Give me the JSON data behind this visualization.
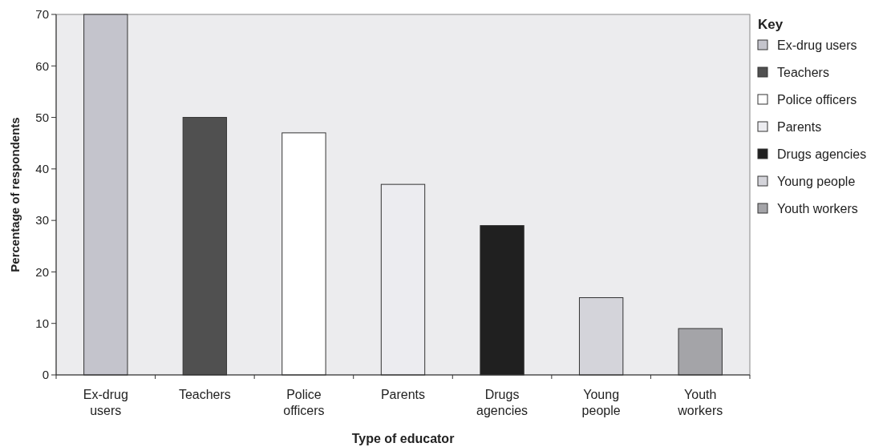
{
  "chart_data": {
    "type": "bar",
    "xlabel": "Type of educator",
    "ylabel": "Percentage of respondents",
    "legend_title": "Key",
    "categories": [
      "Ex-drug users",
      "Teachers",
      "Police officers",
      "Parents",
      "Drugs agencies",
      "Young people",
      "Youth workers"
    ],
    "series": [
      {
        "name": "Ex-drug users",
        "color": "#c4c4cc",
        "values": [
          70,
          null,
          null,
          null,
          null,
          null,
          null
        ]
      },
      {
        "name": "Teachers",
        "color": "#505050",
        "values": [
          null,
          50,
          null,
          null,
          null,
          null,
          null
        ]
      },
      {
        "name": "Police officers",
        "color": "#ffffff",
        "values": [
          null,
          null,
          47,
          null,
          null,
          null,
          null
        ]
      },
      {
        "name": "Parents",
        "color": "#ececf0",
        "values": [
          null,
          null,
          null,
          37,
          null,
          null,
          null
        ]
      },
      {
        "name": "Drugs agencies",
        "color": "#202020",
        "values": [
          null,
          null,
          null,
          null,
          29,
          null,
          null
        ]
      },
      {
        "name": "Young people",
        "color": "#d4d4da",
        "values": [
          null,
          null,
          null,
          null,
          null,
          15,
          null
        ]
      },
      {
        "name": "Youth workers",
        "color": "#a4a4a8",
        "values": [
          null,
          null,
          null,
          null,
          null,
          null,
          9
        ]
      }
    ],
    "stacked": true,
    "ylim": [
      0,
      70
    ],
    "yticks": [
      0,
      10,
      20,
      30,
      40,
      50,
      60,
      70
    ],
    "legend": "right"
  }
}
